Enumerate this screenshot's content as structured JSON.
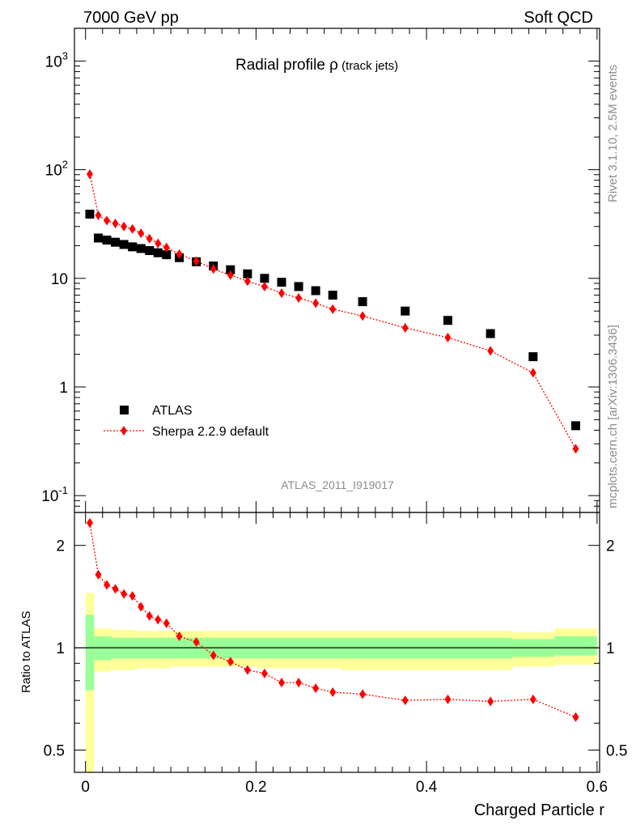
{
  "header": {
    "left": "7000 GeV pp",
    "right": "Soft QCD"
  },
  "side": {
    "top": "Rivet 3.1.10,  2.5M events",
    "bottom": "mcplots.cern.ch [arXiv:1306.3436]"
  },
  "chart_data": [
    {
      "type": "scatter",
      "title_main": "Radial profile ",
      "title_symbol": "ρ",
      "title_sub": " (track jets)",
      "watermark": "ATLAS_2011_I919017",
      "y_scale": "log",
      "ylim": [
        0.07,
        2000
      ],
      "xlim": [
        -0.013,
        0.603
      ],
      "y_tick_labels": [
        "10^-1",
        "1",
        "10",
        "10^2",
        "10^3"
      ],
      "legend": {
        "placement": "bottom-left",
        "entries": [
          "ATLAS",
          "Sherpa 2.2.9 default"
        ]
      },
      "series": [
        {
          "name": "ATLAS",
          "marker": "square",
          "color": "#000000",
          "x": [
            0.005,
            0.015,
            0.025,
            0.035,
            0.045,
            0.055,
            0.065,
            0.075,
            0.085,
            0.095,
            0.11,
            0.13,
            0.15,
            0.17,
            0.19,
            0.21,
            0.23,
            0.25,
            0.27,
            0.29,
            0.325,
            0.375,
            0.425,
            0.475,
            0.525,
            0.575
          ],
          "y": [
            39,
            23.5,
            22.5,
            21.5,
            20.5,
            19.5,
            18.8,
            18.0,
            17.2,
            16.5,
            15.5,
            14.2,
            13.0,
            12.0,
            11.0,
            10.0,
            9.2,
            8.4,
            7.7,
            7.0,
            6.1,
            5.0,
            4.1,
            3.1,
            1.9,
            0.44
          ]
        },
        {
          "name": "Sherpa 2.2.9 default",
          "marker": "diamond",
          "color": "#ff0000",
          "line": "dotted",
          "x": [
            0.005,
            0.015,
            0.025,
            0.035,
            0.045,
            0.055,
            0.065,
            0.075,
            0.085,
            0.095,
            0.11,
            0.13,
            0.15,
            0.17,
            0.19,
            0.21,
            0.23,
            0.25,
            0.27,
            0.29,
            0.325,
            0.375,
            0.425,
            0.475,
            0.525,
            0.575
          ],
          "y": [
            91,
            38,
            34,
            32,
            30,
            28.5,
            26,
            23.2,
            21,
            19.2,
            16.7,
            14.4,
            12.2,
            10.7,
            9.4,
            8.4,
            7.3,
            6.6,
            5.9,
            5.2,
            4.5,
            3.5,
            2.85,
            2.15,
            1.35,
            0.27
          ]
        }
      ]
    },
    {
      "type": "scatter",
      "ylabel": "Ratio to ATLAS",
      "xlabel": "Charged Particle r",
      "y_scale": "log",
      "ylim": [
        0.43,
        2.5
      ],
      "xlim": [
        -0.013,
        0.603
      ],
      "y_tick_labels": [
        "0.5",
        "1",
        "2"
      ],
      "x_tick_labels": [
        "0",
        "0.2",
        "0.4",
        "0.6"
      ],
      "bands": {
        "colors": {
          "inner": "#99ff99",
          "outer": "#ffff99"
        },
        "bins": [
          {
            "x0": 0.0,
            "x1": 0.01,
            "inner": [
              0.75,
              1.25
            ],
            "outer": [
              0.37,
              1.45
            ]
          },
          {
            "x0": 0.01,
            "x1": 0.03,
            "inner": [
              0.92,
              1.08
            ],
            "outer": [
              0.85,
              1.14
            ]
          },
          {
            "x0": 0.03,
            "x1": 0.06,
            "inner": [
              0.93,
              1.07
            ],
            "outer": [
              0.86,
              1.13
            ]
          },
          {
            "x0": 0.06,
            "x1": 0.1,
            "inner": [
              0.93,
              1.07
            ],
            "outer": [
              0.87,
              1.12
            ]
          },
          {
            "x0": 0.1,
            "x1": 0.2,
            "inner": [
              0.93,
              1.07
            ],
            "outer": [
              0.88,
              1.12
            ]
          },
          {
            "x0": 0.2,
            "x1": 0.3,
            "inner": [
              0.93,
              1.07
            ],
            "outer": [
              0.87,
              1.12
            ]
          },
          {
            "x0": 0.3,
            "x1": 0.4,
            "inner": [
              0.93,
              1.07
            ],
            "outer": [
              0.86,
              1.12
            ]
          },
          {
            "x0": 0.4,
            "x1": 0.5,
            "inner": [
              0.93,
              1.07
            ],
            "outer": [
              0.86,
              1.12
            ]
          },
          {
            "x0": 0.5,
            "x1": 0.55,
            "inner": [
              0.94,
              1.06
            ],
            "outer": [
              0.88,
              1.11
            ]
          },
          {
            "x0": 0.55,
            "x1": 0.6,
            "inner": [
              0.95,
              1.08
            ],
            "outer": [
              0.89,
              1.14
            ]
          }
        ]
      },
      "series": [
        {
          "name": "Sherpa 2.2.9 default",
          "marker": "diamond",
          "color": "#ff0000",
          "line": "dotted",
          "x": [
            0.005,
            0.015,
            0.025,
            0.035,
            0.045,
            0.055,
            0.065,
            0.075,
            0.085,
            0.095,
            0.11,
            0.13,
            0.15,
            0.17,
            0.19,
            0.21,
            0.23,
            0.25,
            0.27,
            0.29,
            0.325,
            0.375,
            0.425,
            0.475,
            0.525,
            0.575
          ],
          "y": [
            2.33,
            1.64,
            1.53,
            1.49,
            1.44,
            1.42,
            1.32,
            1.24,
            1.21,
            1.18,
            1.08,
            1.04,
            0.95,
            0.91,
            0.86,
            0.84,
            0.79,
            0.79,
            0.76,
            0.74,
            0.73,
            0.7,
            0.705,
            0.695,
            0.705,
            0.625
          ]
        }
      ]
    }
  ]
}
